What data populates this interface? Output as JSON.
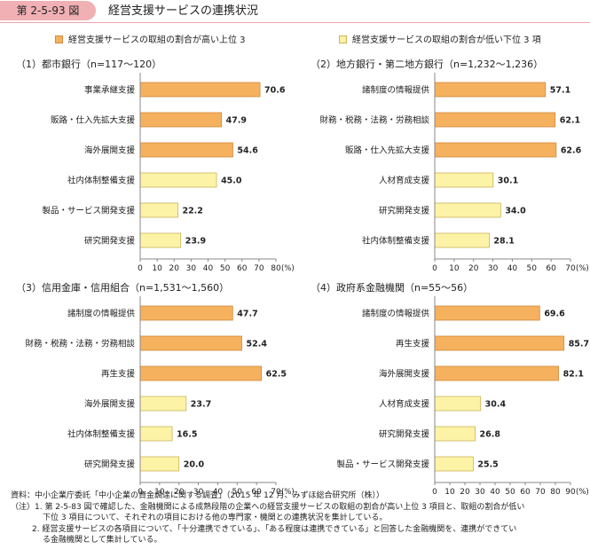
{
  "header": {
    "figure_number": "第 2-5-93 図",
    "title": "経営支援サービスの連携状況"
  },
  "legend": {
    "high": "経営支援サービスの取組の割合が高い上位 3",
    "low": "経営支援サービスの取組の割合が低い下位 3 項"
  },
  "colors": {
    "high_fill": "#f6b15e",
    "high_stroke": "#d1893a",
    "low_fill": "#fdf3a6",
    "low_stroke": "#c9b35a",
    "axis": "#888888"
  },
  "chart_data": [
    {
      "type": "bar",
      "orientation": "horizontal",
      "title": "（1）都市銀行（n=117～120）",
      "categories": [
        "事業承継支援",
        "販路・仕入先拡大支援",
        "海外展開支援",
        "社内体制整備支援",
        "製品・サービス開発支援",
        "研究開発支援"
      ],
      "values": [
        70.6,
        47.9,
        54.6,
        45.0,
        22.2,
        23.9
      ],
      "value_labels": [
        "70.6",
        "47.9",
        "54.6",
        "45.0",
        "22.2",
        "23.9"
      ],
      "group": [
        "high",
        "high",
        "high",
        "low",
        "low",
        "low"
      ],
      "xlim": [
        0,
        80
      ],
      "ticks": [
        "0",
        "10",
        "20",
        "30",
        "40",
        "50",
        "60",
        "70",
        "80"
      ],
      "unit": "(%)"
    },
    {
      "type": "bar",
      "orientation": "horizontal",
      "title": "（2）地方銀行・第二地方銀行（n=1,232～1,236）",
      "categories": [
        "諸制度の情報提供",
        "財務・税務・法務・労務相談",
        "販路・仕入先拡大支援",
        "人材育成支援",
        "研究開発支援",
        "社内体制整備支援"
      ],
      "values": [
        57.1,
        62.1,
        62.6,
        30.1,
        34.0,
        28.1
      ],
      "value_labels": [
        "57.1",
        "62.1",
        "62.6",
        "30.1",
        "34.0",
        "28.1"
      ],
      "group": [
        "high",
        "high",
        "high",
        "low",
        "low",
        "low"
      ],
      "xlim": [
        0,
        70
      ],
      "ticks": [
        "0",
        "10",
        "20",
        "30",
        "40",
        "50",
        "60",
        "70"
      ],
      "unit": "(%)"
    },
    {
      "type": "bar",
      "orientation": "horizontal",
      "title": "（3）信用金庫・信用組合（n=1,531～1,560）",
      "categories": [
        "諸制度の情報提供",
        "財務・税務・法務・労務相談",
        "再生支援",
        "海外展開支援",
        "社内体制整備支援",
        "研究開発支援"
      ],
      "values": [
        47.7,
        52.4,
        62.5,
        23.7,
        16.5,
        20.0
      ],
      "value_labels": [
        "47.7",
        "52.4",
        "62.5",
        "23.7",
        "16.5",
        "20.0"
      ],
      "group": [
        "high",
        "high",
        "high",
        "low",
        "low",
        "low"
      ],
      "xlim": [
        0,
        70
      ],
      "ticks": [
        "0",
        "10",
        "20",
        "30",
        "40",
        "50",
        "60",
        "70"
      ],
      "unit": "(%)"
    },
    {
      "type": "bar",
      "orientation": "horizontal",
      "title": "（4）政府系金融機関（n=55～56）",
      "categories": [
        "諸制度の情報提供",
        "再生支援",
        "海外展開支援",
        "人材育成支援",
        "研究開発支援",
        "製品・サービス開発支援"
      ],
      "values": [
        69.6,
        85.7,
        82.1,
        30.4,
        26.8,
        25.5
      ],
      "value_labels": [
        "69.6",
        "85.7",
        "82.1",
        "30.4",
        "26.8",
        "25.5"
      ],
      "group": [
        "high",
        "high",
        "high",
        "low",
        "low",
        "low"
      ],
      "xlim": [
        0,
        90
      ],
      "ticks": [
        "0",
        "10",
        "20",
        "30",
        "40",
        "50",
        "60",
        "70",
        "80",
        "90"
      ],
      "unit": "(%)"
    }
  ],
  "notes": {
    "line1": "資料：中小企業庁委託「中小企業の資金調達に関する調査」（2015 年 12 月、みずほ総合研究所（株））",
    "line2": "（注）1. 第 2-5-83 図で確認した、金融機関による成熟段階の企業への経営支援サービスの取組の割合が高い上位 3 項目と、取組の割合が低い",
    "line3": "下位 3 項目について、それぞれの項目における他の専門家・機関との連携状況を集計している。",
    "line4": "2. 経営支援サービスの各項目について、「十分連携できている」、「ある程度は連携できている」と回答した金融機関を、連携ができてい",
    "line5": "る金融機関として集計している。"
  }
}
